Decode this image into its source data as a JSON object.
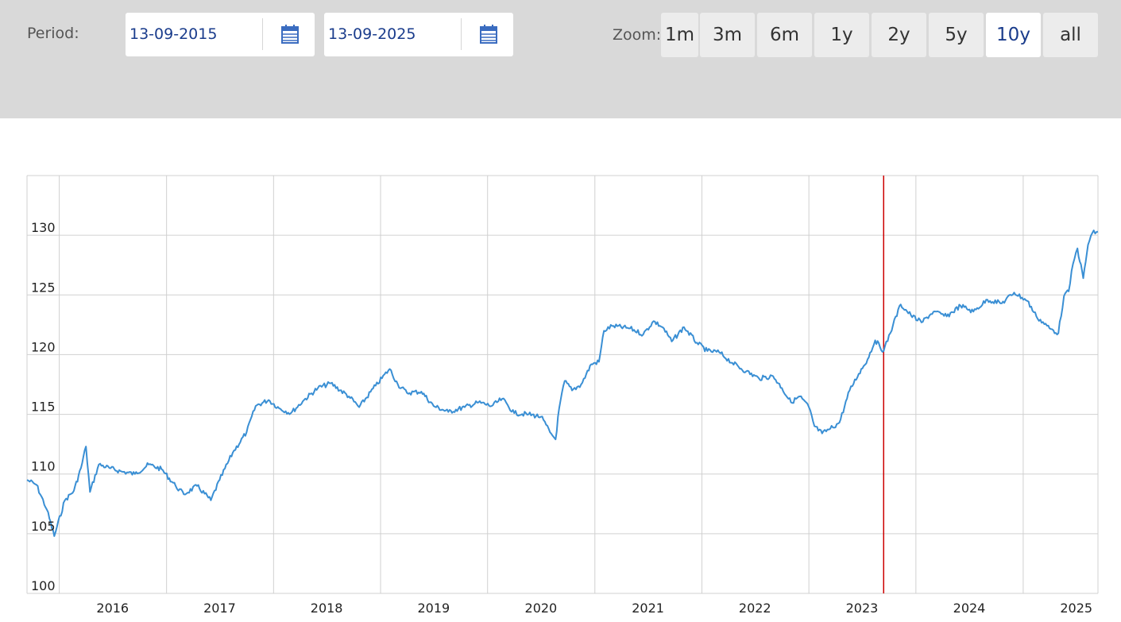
{
  "toolbar": {
    "period_label": "Period:",
    "start_date": "13-09-2015",
    "end_date": "13-09-2025",
    "calendar_icon": "calendar-icon",
    "zoom_label": "Zoom:",
    "zoom_buttons": [
      {
        "label": "1m",
        "active": false
      },
      {
        "label": "3m",
        "active": false
      },
      {
        "label": "6m",
        "active": false
      },
      {
        "label": "1y",
        "active": false
      },
      {
        "label": "2y",
        "active": false
      },
      {
        "label": "5y",
        "active": false
      },
      {
        "label": "10y",
        "active": true
      },
      {
        "label": "all",
        "active": false
      }
    ]
  },
  "colors": {
    "line": "#3a8fd4",
    "marker": "#cc0000",
    "grid": "#d0d0d0",
    "toolbar_bg": "#d9d9d9",
    "date_text": "#1a3c8c"
  },
  "chart_data": {
    "type": "line",
    "title": "",
    "xlabel": "",
    "ylabel": "",
    "ylim": [
      100,
      135
    ],
    "xlim": [
      "2015-09-13",
      "2025-09-13"
    ],
    "y_ticks": [
      100,
      105,
      110,
      115,
      120,
      125,
      130
    ],
    "x_tick_labels": [
      "2016",
      "2017",
      "2018",
      "2019",
      "2020",
      "2021",
      "2022",
      "2023",
      "2024",
      "2025"
    ],
    "x_tick_label_dates": [
      "2016-07-01",
      "2017-07-01",
      "2018-07-01",
      "2019-07-01",
      "2020-07-01",
      "2021-07-01",
      "2022-07-01",
      "2023-07-01",
      "2024-07-01",
      "2025-07-01"
    ],
    "x_grid_dates": [
      "2015-09-13",
      "2016-01-01",
      "2017-01-01",
      "2018-01-01",
      "2019-01-01",
      "2020-01-01",
      "2021-01-01",
      "2022-01-01",
      "2023-01-01",
      "2024-01-01",
      "2025-01-01",
      "2025-09-13"
    ],
    "grid": true,
    "legend": "none",
    "marker_line_date": "2023-09-13",
    "series": [
      {
        "points": [
          [
            "2015-09-13",
            109.5
          ],
          [
            "2015-10-15",
            109.1
          ],
          [
            "2015-11-20",
            107.0
          ],
          [
            "2015-12-15",
            104.8
          ],
          [
            "2016-01-20",
            107.8
          ],
          [
            "2016-02-20",
            108.6
          ],
          [
            "2016-03-15",
            110.5
          ],
          [
            "2016-04-01",
            112.3
          ],
          [
            "2016-04-15",
            108.5
          ],
          [
            "2016-05-15",
            110.8
          ],
          [
            "2016-06-20",
            110.5
          ],
          [
            "2016-08-01",
            110.2
          ],
          [
            "2016-09-15",
            110.0
          ],
          [
            "2016-11-01",
            110.8
          ],
          [
            "2016-12-15",
            110.4
          ],
          [
            "2017-02-01",
            109.0
          ],
          [
            "2017-03-01",
            108.3
          ],
          [
            "2017-04-15",
            109.0
          ],
          [
            "2017-06-01",
            107.8
          ],
          [
            "2017-07-01",
            109.5
          ],
          [
            "2017-08-15",
            111.8
          ],
          [
            "2017-10-01",
            113.5
          ],
          [
            "2017-11-01",
            115.7
          ],
          [
            "2017-12-15",
            116.2
          ],
          [
            "2018-01-20",
            115.5
          ],
          [
            "2018-03-01",
            115.1
          ],
          [
            "2018-04-15",
            116.2
          ],
          [
            "2018-06-01",
            117.2
          ],
          [
            "2018-07-15",
            117.6
          ],
          [
            "2018-09-15",
            116.5
          ],
          [
            "2018-10-20",
            115.6
          ],
          [
            "2018-12-15",
            117.4
          ],
          [
            "2019-02-01",
            118.8
          ],
          [
            "2019-03-01",
            117.5
          ],
          [
            "2019-04-01",
            116.8
          ],
          [
            "2019-05-20",
            116.9
          ],
          [
            "2019-07-01",
            115.7
          ],
          [
            "2019-08-20",
            115.2
          ],
          [
            "2019-10-15",
            115.6
          ],
          [
            "2019-12-01",
            116.0
          ],
          [
            "2020-01-15",
            115.7
          ],
          [
            "2020-02-20",
            116.3
          ],
          [
            "2020-04-01",
            115.1
          ],
          [
            "2020-05-20",
            115.0
          ],
          [
            "2020-07-01",
            114.8
          ],
          [
            "2020-08-01",
            113.5
          ],
          [
            "2020-08-20",
            112.9
          ],
          [
            "2020-09-01",
            115.5
          ],
          [
            "2020-09-20",
            117.8
          ],
          [
            "2020-10-15",
            117.0
          ],
          [
            "2020-11-15",
            117.5
          ],
          [
            "2020-12-20",
            119.2
          ],
          [
            "2021-01-15",
            119.4
          ],
          [
            "2021-02-01",
            122.0
          ],
          [
            "2021-03-01",
            122.4
          ],
          [
            "2021-05-01",
            122.2
          ],
          [
            "2021-06-15",
            121.7
          ],
          [
            "2021-07-20",
            122.8
          ],
          [
            "2021-08-20",
            122.3
          ],
          [
            "2021-09-20",
            121.1
          ],
          [
            "2021-11-01",
            122.3
          ],
          [
            "2021-12-15",
            121.0
          ],
          [
            "2022-01-20",
            120.3
          ],
          [
            "2022-03-01",
            120.2
          ],
          [
            "2022-04-15",
            119.3
          ],
          [
            "2022-06-01",
            118.6
          ],
          [
            "2022-07-15",
            118.0
          ],
          [
            "2022-09-01",
            118.2
          ],
          [
            "2022-10-01",
            117.2
          ],
          [
            "2022-11-01",
            116.0
          ],
          [
            "2022-12-01",
            116.5
          ],
          [
            "2023-01-01",
            115.6
          ],
          [
            "2023-01-20",
            114.0
          ],
          [
            "2023-02-15",
            113.4
          ],
          [
            "2023-03-15",
            113.8
          ],
          [
            "2023-04-15",
            114.3
          ],
          [
            "2023-05-20",
            117.0
          ],
          [
            "2023-06-20",
            118.4
          ],
          [
            "2023-07-20",
            119.6
          ],
          [
            "2023-08-15",
            121.2
          ],
          [
            "2023-09-13",
            120.3
          ],
          [
            "2023-10-15",
            122.5
          ],
          [
            "2023-11-10",
            124.2
          ],
          [
            "2023-12-15",
            123.3
          ],
          [
            "2024-01-20",
            122.7
          ],
          [
            "2024-03-01",
            123.6
          ],
          [
            "2024-04-15",
            123.2
          ],
          [
            "2024-06-01",
            124.1
          ],
          [
            "2024-07-15",
            123.6
          ],
          [
            "2024-09-01",
            124.6
          ],
          [
            "2024-10-20",
            124.3
          ],
          [
            "2024-12-01",
            125.2
          ],
          [
            "2025-01-15",
            124.5
          ],
          [
            "2025-02-15",
            123.2
          ],
          [
            "2025-04-01",
            122.2
          ],
          [
            "2025-05-01",
            121.8
          ],
          [
            "2025-05-20",
            124.9
          ],
          [
            "2025-06-05",
            125.3
          ],
          [
            "2025-06-20",
            127.6
          ],
          [
            "2025-07-05",
            128.9
          ],
          [
            "2025-07-25",
            126.4
          ],
          [
            "2025-08-10",
            129.2
          ],
          [
            "2025-08-25",
            130.2
          ],
          [
            "2025-09-13",
            130.3
          ]
        ]
      }
    ]
  }
}
